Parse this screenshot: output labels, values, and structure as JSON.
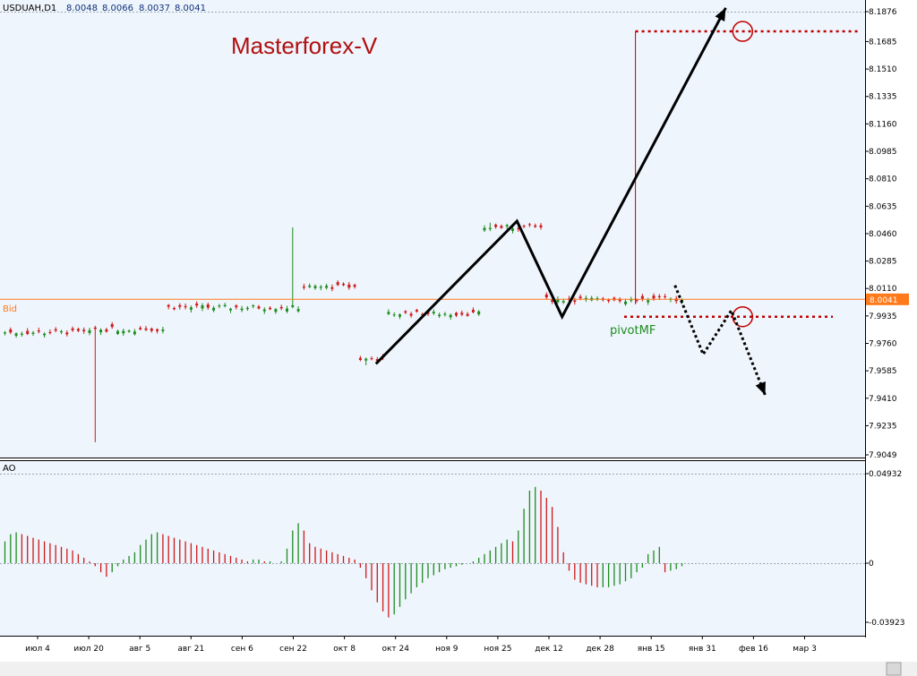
{
  "header": {
    "symbol": "USDUAH,D1",
    "open": "8.0048",
    "high": "8.0066",
    "low": "8.0037",
    "close": "8.0041"
  },
  "watermark": "Masterforex-V",
  "bid_label": "Bid",
  "bid_value": "8.0041",
  "pivot_label": "pivotMF",
  "ao_label": "AO",
  "colors": {
    "background": "#eef5fc",
    "bull": "#1e8c1e",
    "bear": "#d01818",
    "bid_line": "#ff7a1a",
    "level": "#c00000",
    "watermark": "#b01010"
  },
  "chart_data": [
    {
      "type": "candlestick",
      "axis_ticks": [
        "8.1876",
        "8.1685",
        "8.1510",
        "8.1335",
        "8.1160",
        "8.0985",
        "8.0810",
        "8.0635",
        "8.0460",
        "8.0285",
        "8.0110",
        "7.9935",
        "7.9760",
        "7.9585",
        "7.9410",
        "7.9235",
        "7.9049"
      ],
      "ylim": [
        7.9049,
        8.1876
      ],
      "x_labels": [
        "июл 4",
        "июл 20",
        "авг 5",
        "авг 21",
        "сен 6",
        "сен 22",
        "окт 8",
        "окт 24",
        "ноя 9",
        "ноя 25",
        "дек 12",
        "дек 28",
        "янв 15",
        "янв 31",
        "фев 16",
        "мар 3"
      ],
      "price_segments": [
        {
          "from": 0,
          "to": 15,
          "level": 7.983
        },
        {
          "from": 16,
          "to": 28,
          "level": 7.985
        },
        {
          "from": 29,
          "to": 52,
          "level": 7.999
        },
        {
          "from": 53,
          "to": 62,
          "level": 8.012
        },
        {
          "from": 63,
          "to": 67,
          "level": 7.966
        },
        {
          "from": 68,
          "to": 84,
          "level": 7.995
        },
        {
          "from": 85,
          "to": 95,
          "level": 8.05
        },
        {
          "from": 96,
          "to": 120,
          "level": 8.004
        }
      ],
      "spikes": [
        {
          "index": 16,
          "low": 7.913
        },
        {
          "index": 51,
          "high": 8.05
        },
        {
          "index": 64,
          "low": 7.962
        },
        {
          "index": 86,
          "high": 8.053
        }
      ],
      "last_price": 8.0041,
      "pivot_level": 7.993,
      "projection_level": 8.175,
      "zigzag": [
        {
          "i": 66,
          "p": 7.963
        },
        {
          "i": 91,
          "p": 8.054
        },
        {
          "i": 99,
          "p": 7.993
        },
        {
          "i": 128,
          "p": 8.19
        }
      ],
      "dotted_path": [
        {
          "i": 119,
          "p": 8.013
        },
        {
          "i": 124,
          "p": 7.969
        },
        {
          "i": 129,
          "p": 7.997
        },
        {
          "i": 135,
          "p": 7.943
        }
      ]
    },
    {
      "type": "bar",
      "name": "AO",
      "axis_ticks": [
        "0.04932",
        "0",
        "-0.03923"
      ],
      "ylim": [
        -0.03923,
        0.04932
      ],
      "values": [
        0.012,
        0.016,
        0.017,
        0.016,
        0.015,
        0.014,
        0.013,
        0.012,
        0.011,
        0.01,
        0.009,
        0.008,
        0.007,
        0.005,
        0.003,
        0.001,
        -0.002,
        -0.006,
        -0.009,
        -0.006,
        -0.002,
        0.002,
        0.004,
        0.006,
        0.01,
        0.013,
        0.016,
        0.017,
        0.016,
        0.015,
        0.014,
        0.013,
        0.012,
        0.011,
        0.01,
        0.009,
        0.008,
        0.007,
        0.006,
        0.005,
        0.004,
        0.003,
        0.002,
        0.001,
        0.002,
        0.002,
        0.001,
        0.001,
        0.0,
        0.001,
        0.008,
        0.018,
        0.022,
        0.018,
        0.011,
        0.009,
        0.008,
        0.007,
        0.006,
        0.005,
        0.004,
        0.003,
        0.002,
        -0.003,
        -0.01,
        -0.018,
        -0.026,
        -0.032,
        -0.036,
        -0.034,
        -0.029,
        -0.024,
        -0.02,
        -0.016,
        -0.013,
        -0.01,
        -0.008,
        -0.006,
        -0.004,
        -0.003,
        -0.002,
        -0.001,
        0.0,
        0.001,
        0.003,
        0.005,
        0.007,
        0.009,
        0.011,
        0.013,
        0.012,
        0.018,
        0.03,
        0.04,
        0.042,
        0.04,
        0.036,
        0.031,
        0.02,
        0.006,
        -0.005,
        -0.011,
        -0.013,
        -0.014,
        -0.015,
        -0.016,
        -0.016,
        -0.016,
        -0.015,
        -0.014,
        -0.012,
        -0.01,
        -0.006,
        -0.003,
        0.005,
        0.007,
        0.009,
        -0.006,
        -0.005,
        -0.004,
        -0.002
      ]
    }
  ]
}
